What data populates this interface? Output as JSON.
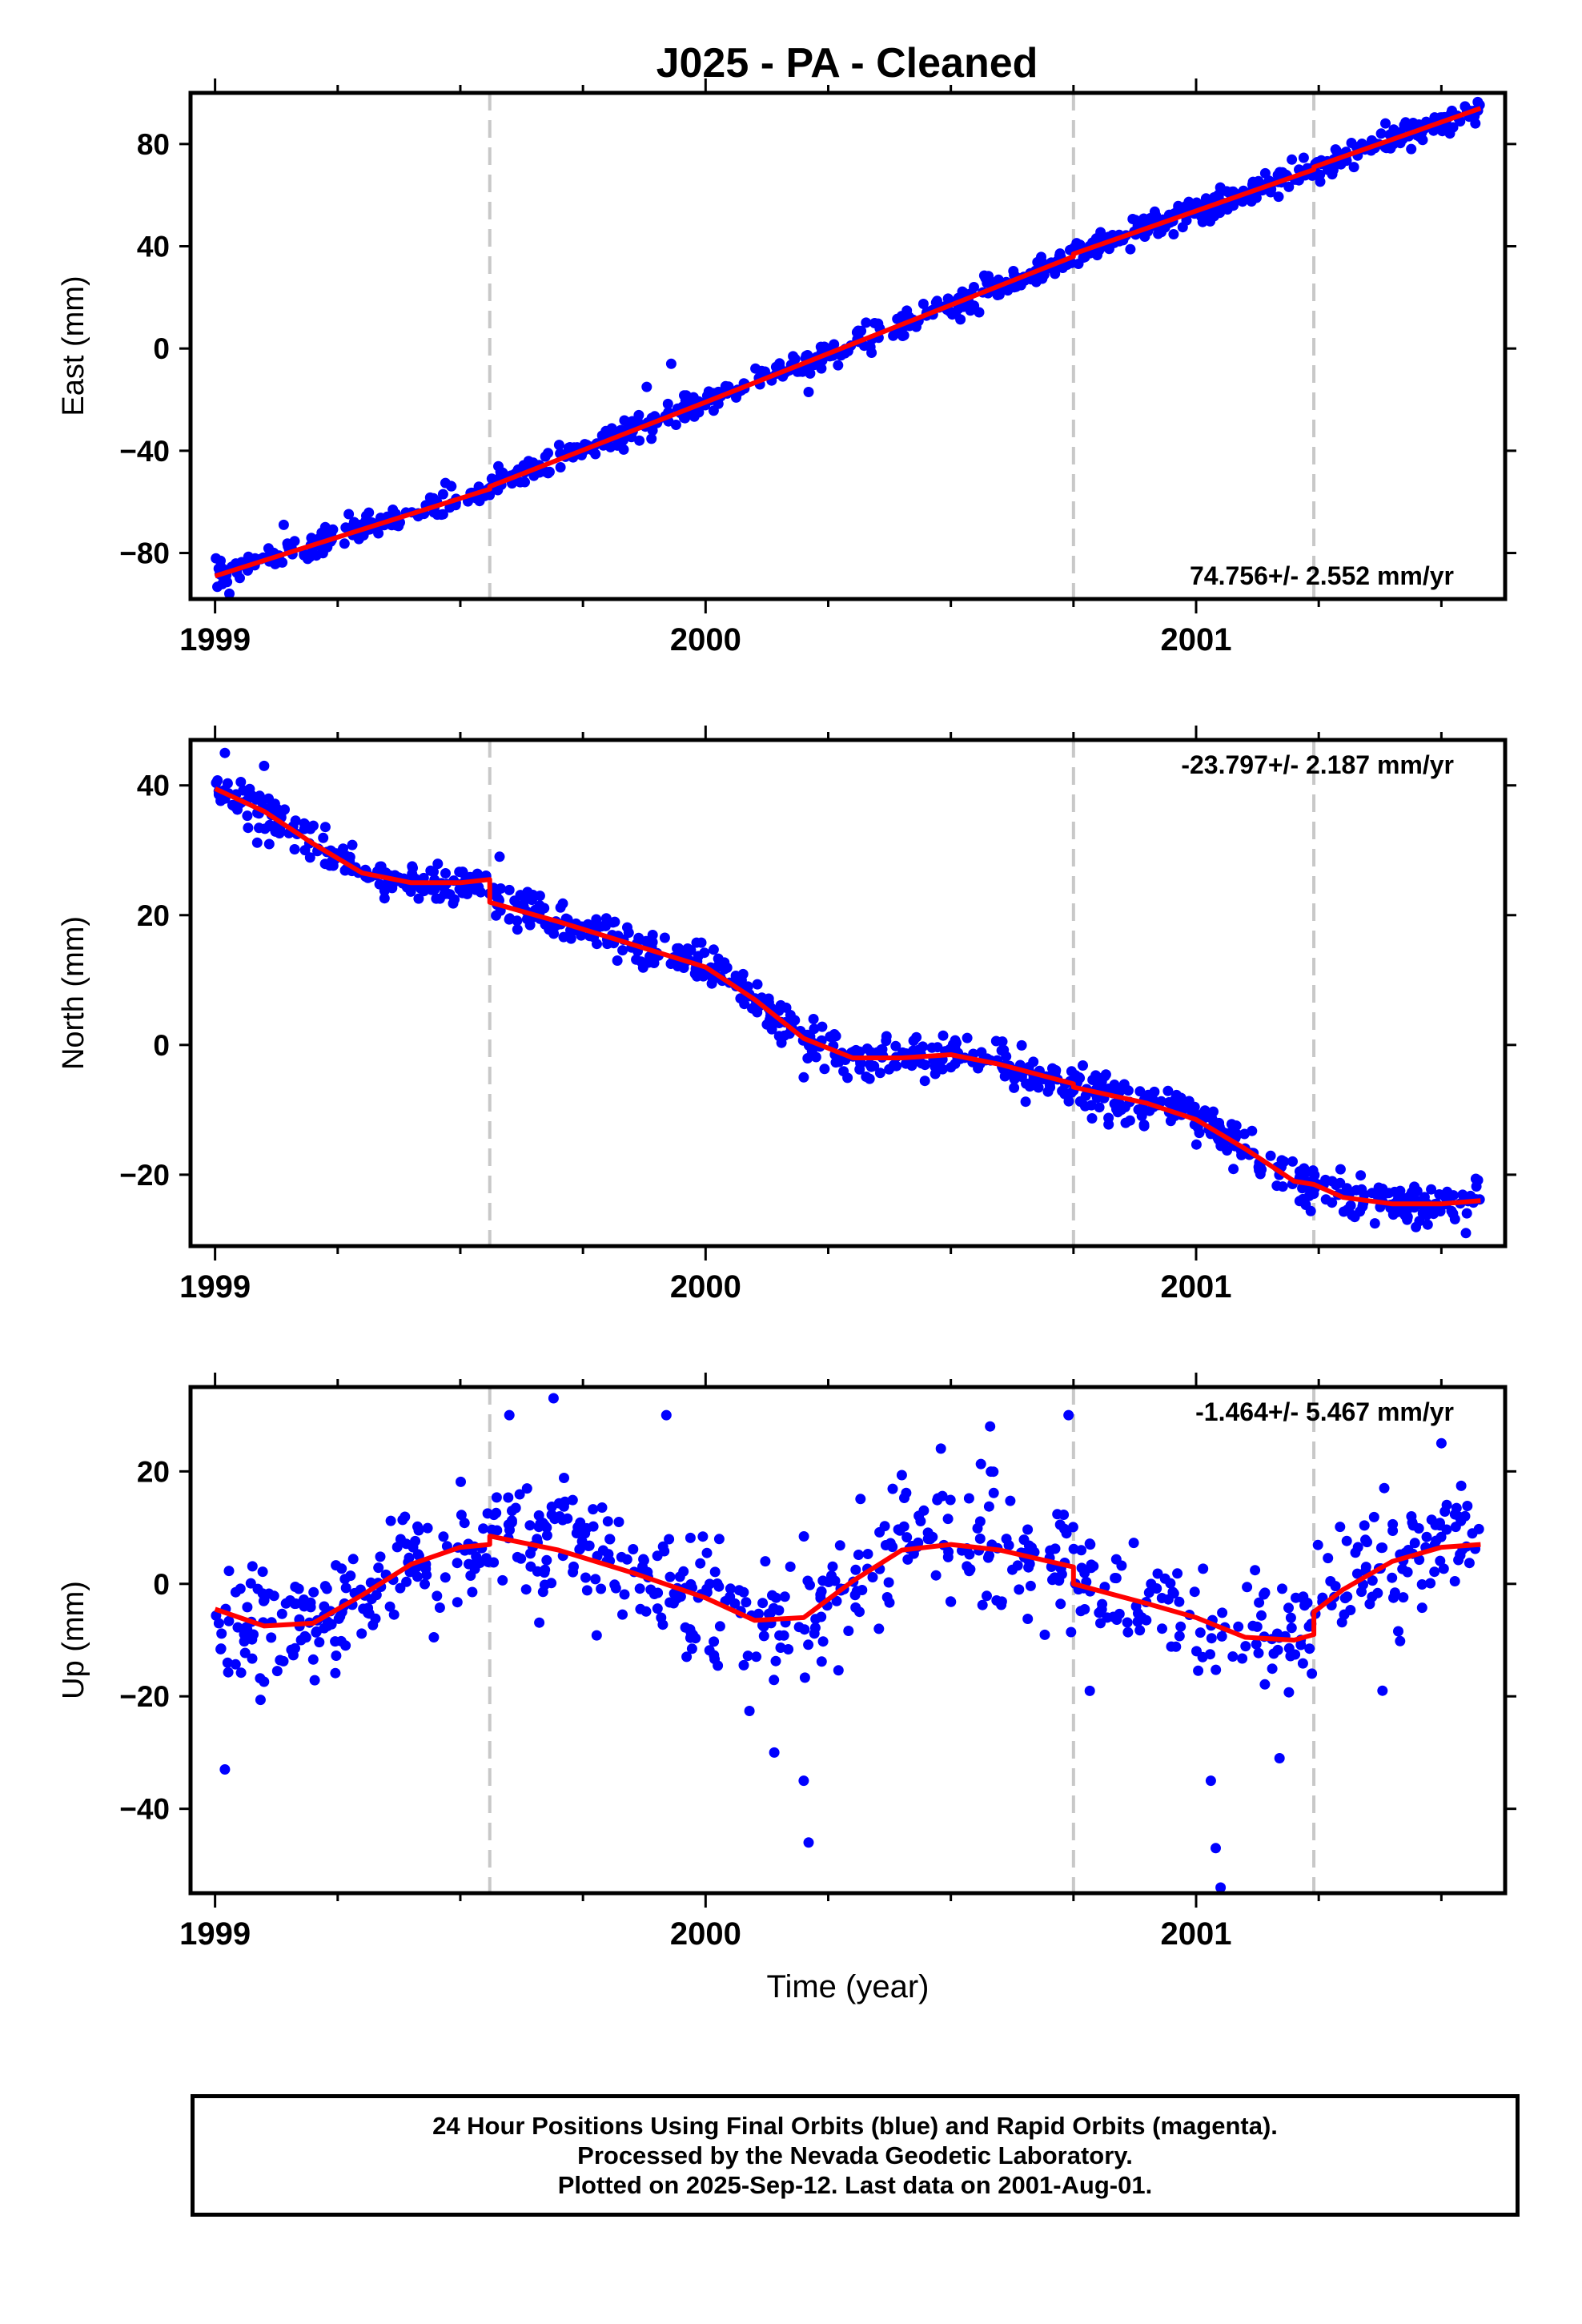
{
  "title": "J025  - PA - Cleaned",
  "footer": {
    "line1": "24 Hour Positions Using Final Orbits (blue) and Rapid Orbits (magenta).",
    "line2": "Processed by the Nevada Geodetic Laboratory.",
    "line3": "Plotted on 2025-Sep-12. Last data on 2001-Aug-01."
  },
  "colors": {
    "observations": "#0000ff",
    "model": "#ff0000",
    "event_lines": "#c8c8c8"
  },
  "chart_data": [
    {
      "type": "scatter",
      "component": "east",
      "ylabel": "East (mm)",
      "xlabel": "",
      "xlim": [
        1998.95,
        2001.63
      ],
      "ylim": [
        -98,
        100
      ],
      "x_ticks": [
        1999,
        2000,
        2001
      ],
      "y_ticks": [
        -80,
        -40,
        0,
        40,
        80
      ],
      "rate_label": "74.756+/- 2.552 mm/yr",
      "rate_position": "bottom-right",
      "event_lines": [
        1999.56,
        2000.75,
        2001.24
      ],
      "model_series": {
        "x": [
          1999.0,
          1999.56,
          1999.56,
          2000.0,
          2000.75,
          2000.75,
          2001.24,
          2001.24,
          2001.58
        ],
        "y": [
          -89,
          -55,
          -54,
          -21,
          36,
          37,
          70,
          71,
          94
        ]
      },
      "obs": {
        "x0": 1999.0,
        "x1": 2001.58,
        "n": 820,
        "trend": [
          -89,
          94
        ],
        "noise": 2.5,
        "outliers": [
          [
            1999.14,
            -69
          ],
          [
            1999.93,
            -6
          ],
          [
            1999.88,
            -15
          ],
          [
            2000.21,
            -17
          ]
        ]
      }
    },
    {
      "type": "scatter",
      "component": "north",
      "ylabel": "North (mm)",
      "xlabel": "",
      "xlim": [
        1998.95,
        2001.63
      ],
      "ylim": [
        -31,
        47
      ],
      "x_ticks": [
        1999,
        2000,
        2001
      ],
      "y_ticks": [
        -20,
        0,
        20,
        40
      ],
      "rate_label": "-23.797+/- 2.187 mm/yr",
      "rate_position": "top-right",
      "event_lines": [
        1999.56,
        2000.75,
        2001.24
      ],
      "model_series": {
        "x": [
          1999.0,
          1999.1,
          1999.2,
          1999.3,
          1999.4,
          1999.5,
          1999.56,
          1999.56,
          1999.7,
          1999.85,
          2000.0,
          2000.1,
          2000.2,
          2000.3,
          2000.4,
          2000.5,
          2000.6,
          2000.75,
          2000.75,
          2000.9,
          2001.0,
          2001.1,
          2001.2,
          2001.24,
          2001.3,
          2001.4,
          2001.5,
          2001.58
        ],
        "y": [
          39.5,
          36,
          31,
          26.5,
          25,
          25,
          25.5,
          22,
          19,
          15.5,
          12,
          7,
          1,
          -2,
          -2,
          -1.5,
          -3,
          -6,
          -6.5,
          -9,
          -11.5,
          -16,
          -21,
          -21.5,
          -23.5,
          -24.5,
          -24.5,
          -24
        ]
      },
      "obs": {
        "x0": 1999.0,
        "x1": 2001.58,
        "n": 820,
        "noise": 1.6,
        "outliers": [
          [
            1999.02,
            45
          ],
          [
            1999.1,
            43
          ],
          [
            1999.58,
            29
          ],
          [
            2000.2,
            -5
          ],
          [
            2001.55,
            -29
          ]
        ]
      }
    },
    {
      "type": "scatter",
      "component": "up",
      "ylabel": "Up (mm)",
      "xlabel": "Time (year)",
      "xlim": [
        1998.95,
        2001.63
      ],
      "ylim": [
        -55,
        35
      ],
      "x_ticks": [
        1999,
        2000,
        2001
      ],
      "y_ticks": [
        -40,
        -20,
        0,
        20
      ],
      "rate_label": "-1.464+/- 5.467 mm/yr",
      "rate_position": "top-right",
      "event_lines": [
        1999.56,
        2000.75,
        2001.24
      ],
      "model_series": {
        "x": [
          1999.0,
          1999.1,
          1999.2,
          1999.3,
          1999.4,
          1999.5,
          1999.56,
          1999.56,
          1999.7,
          1999.85,
          2000.0,
          2000.1,
          2000.2,
          2000.3,
          2000.4,
          2000.5,
          2000.6,
          2000.75,
          2000.75,
          2000.9,
          2001.0,
          2001.1,
          2001.2,
          2001.24,
          2001.24,
          2001.3,
          2001.4,
          2001.5,
          2001.58
        ],
        "y": [
          -4.5,
          -7.5,
          -7,
          -2,
          3.5,
          6.5,
          7,
          8.5,
          6,
          2,
          -2.5,
          -6.5,
          -6,
          0.5,
          6,
          7,
          6,
          3,
          0,
          -3.5,
          -6,
          -9.5,
          -10,
          -9,
          -5,
          -1,
          4,
          6.5,
          7
        ]
      },
      "obs": {
        "x0": 1999.0,
        "x1": 2001.58,
        "n": 720,
        "noise": 5.5,
        "outliers": [
          [
            1999.02,
            -33
          ],
          [
            1999.6,
            30
          ],
          [
            1999.69,
            33
          ],
          [
            1999.92,
            30
          ],
          [
            2000.14,
            -30
          ],
          [
            2000.2,
            -35
          ],
          [
            2000.21,
            -46
          ],
          [
            2000.58,
            28
          ],
          [
            2000.74,
            30
          ],
          [
            2001.04,
            -47
          ],
          [
            2001.05,
            -54
          ],
          [
            2001.03,
            -35
          ],
          [
            2001.17,
            -31
          ],
          [
            2001.38,
            -19
          ],
          [
            2001.5,
            25
          ]
        ]
      }
    }
  ]
}
